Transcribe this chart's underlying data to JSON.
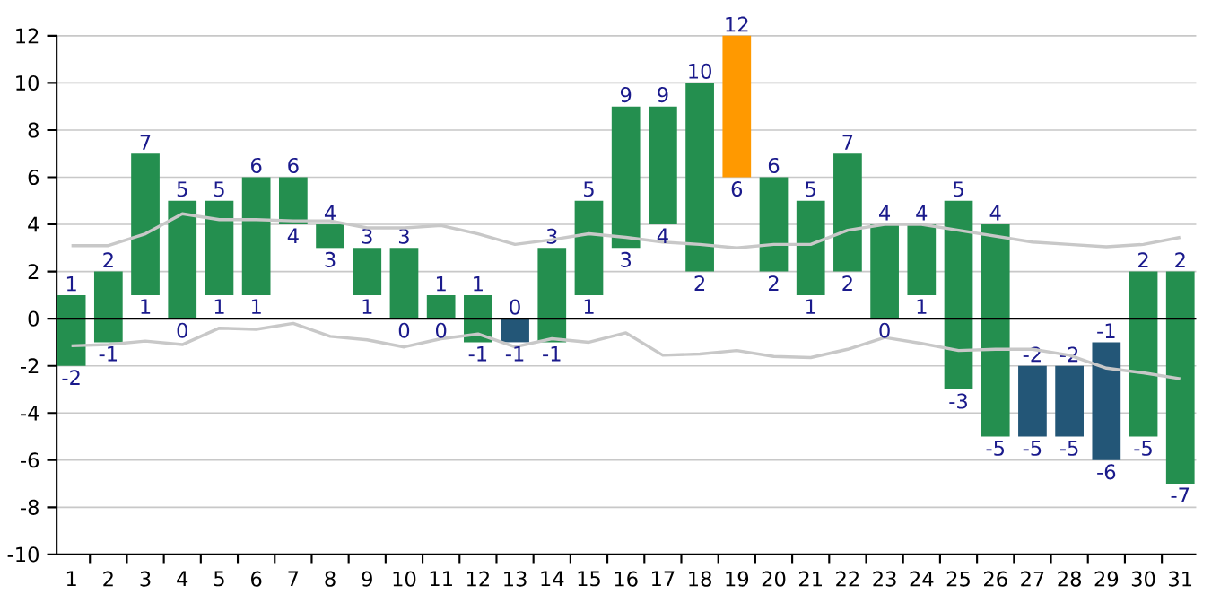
{
  "chart_data": {
    "type": "bar",
    "categories": [
      "1",
      "2",
      "3",
      "4",
      "5",
      "6",
      "7",
      "8",
      "9",
      "10",
      "11",
      "12",
      "13",
      "14",
      "15",
      "16",
      "17",
      "18",
      "19",
      "20",
      "21",
      "22",
      "23",
      "24",
      "25",
      "26",
      "27",
      "28",
      "29",
      "30",
      "31"
    ],
    "series": [
      {
        "base": [
          -2,
          -1,
          1,
          0,
          1,
          1,
          4,
          3,
          1,
          0,
          0,
          -1,
          -1,
          -1,
          1,
          3,
          4,
          2,
          6,
          2,
          1,
          2,
          0,
          1,
          -3,
          -5,
          -5,
          -5,
          -6,
          -5,
          -7
        ],
        "values": [
          3,
          3,
          6,
          5,
          4,
          5,
          2,
          1,
          2,
          3,
          1,
          2,
          1,
          4,
          4,
          6,
          5,
          8,
          6,
          4,
          4,
          5,
          4,
          3,
          8,
          9,
          3,
          3,
          5,
          7,
          9
        ],
        "colors": [
          "#248f4f",
          "#248f4f",
          "#248f4f",
          "#248f4f",
          "#248f4f",
          "#248f4f",
          "#248f4f",
          "#248f4f",
          "#248f4f",
          "#248f4f",
          "#248f4f",
          "#248f4f",
          "#235677",
          "#248f4f",
          "#248f4f",
          "#248f4f",
          "#248f4f",
          "#248f4f",
          "#ff9900",
          "#248f4f",
          "#248f4f",
          "#248f4f",
          "#248f4f",
          "#248f4f",
          "#248f4f",
          "#248f4f",
          "#235677",
          "#235677",
          "#235677",
          "#248f4f",
          "#248f4f"
        ],
        "value_labels": [
          "1",
          "2",
          "7",
          "5",
          "5",
          "6",
          "6",
          "4",
          "3",
          "3",
          "1",
          "1",
          "0",
          "3",
          "5",
          "9",
          "9",
          "10",
          "12",
          "6",
          "5",
          "7",
          "4",
          "4",
          "5",
          "4",
          "-2",
          "-2",
          "-1",
          "2",
          "2"
        ]
      },
      {
        "type": "line",
        "color": "#c8c8c8",
        "values": [
          3.1,
          3.1,
          3.6,
          4.45,
          4.2,
          4.2,
          4.15,
          4.15,
          3.85,
          3.85,
          3.95,
          3.6,
          3.15,
          3.35,
          3.6,
          3.45,
          3.25,
          3.15,
          3.0,
          3.15,
          3.15,
          3.75,
          4.0,
          4.0,
          3.75,
          3.5,
          3.25,
          3.15,
          3.05,
          3.15,
          3.45
        ]
      },
      {
        "type": "line",
        "color": "#c8c8c8",
        "values": [
          -1.15,
          -1.1,
          -0.95,
          -1.1,
          -0.4,
          -0.45,
          -0.2,
          -0.75,
          -0.9,
          -1.2,
          -0.85,
          -0.65,
          -1.2,
          -0.85,
          -1.0,
          -0.6,
          -1.55,
          -1.5,
          -1.35,
          -1.6,
          -1.65,
          -1.3,
          -0.8,
          -1.05,
          -1.35,
          -1.3,
          -1.3,
          -1.55,
          -2.1,
          -2.3,
          -2.55
        ]
      }
    ],
    "annotations": [
      {
        "text": "-2",
        "x": "1",
        "y": -2
      },
      {
        "text": "-1",
        "x": "2",
        "y": -1
      },
      {
        "text": "1",
        "x": "3",
        "y": 1
      },
      {
        "text": "0",
        "x": "4",
        "y": 0
      },
      {
        "text": "1",
        "x": "5",
        "y": 1
      },
      {
        "text": "1",
        "x": "6",
        "y": 1
      },
      {
        "text": "4",
        "x": "7",
        "y": 4
      },
      {
        "text": "3",
        "x": "8",
        "y": 3
      },
      {
        "text": "1",
        "x": "9",
        "y": 1
      },
      {
        "text": "0",
        "x": "10",
        "y": 0
      },
      {
        "text": "0",
        "x": "11",
        "y": 0
      },
      {
        "text": "-1",
        "x": "12",
        "y": -1
      },
      {
        "text": "-1",
        "x": "13",
        "y": -1
      },
      {
        "text": "-1",
        "x": "14",
        "y": -1
      },
      {
        "text": "1",
        "x": "15",
        "y": 1
      },
      {
        "text": "3",
        "x": "16",
        "y": 3
      },
      {
        "text": "4",
        "x": "17",
        "y": 4
      },
      {
        "text": "2",
        "x": "18",
        "y": 2
      },
      {
        "text": "6",
        "x": "19",
        "y": 6
      },
      {
        "text": "2",
        "x": "20",
        "y": 2
      },
      {
        "text": "1",
        "x": "21",
        "y": 1
      },
      {
        "text": "2",
        "x": "22",
        "y": 2
      },
      {
        "text": "0",
        "x": "23",
        "y": 0
      },
      {
        "text": "1",
        "x": "24",
        "y": 1
      },
      {
        "text": "-3",
        "x": "25",
        "y": -3
      },
      {
        "text": "-5",
        "x": "26",
        "y": -5
      },
      {
        "text": "-5",
        "x": "27",
        "y": -5
      },
      {
        "text": "-5",
        "x": "28",
        "y": -5
      },
      {
        "text": "-6",
        "x": "29",
        "y": -6
      },
      {
        "text": "-5",
        "x": "30",
        "y": -5
      },
      {
        "text": "-7",
        "x": "31",
        "y": -7
      }
    ],
    "ylim": [
      -10,
      12
    ],
    "yticks": [
      -10,
      -8,
      -6,
      -4,
      -2,
      0,
      2,
      4,
      6,
      8,
      10,
      12
    ],
    "grid": "y",
    "ref_lines": [
      {
        "axis": "y",
        "value": 0,
        "color": "#000000"
      }
    ],
    "marker": "none",
    "line_style": "solid"
  }
}
